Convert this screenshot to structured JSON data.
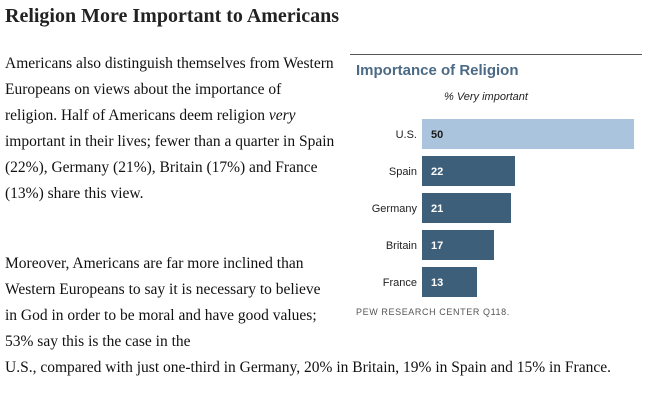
{
  "article": {
    "headline": "Religion More Important to Americans",
    "p1_a": "Americans also distinguish themselves from Western Europeans on views about the importance of religion. Half of Americans deem religion ",
    "p1_em": "very",
    "p1_b": " important in their lives; fewer than a quarter in Spain (22%), Germany (21%), Britain (17%) and France (13%) share this view.",
    "p2_a": "Moreover, Americans are far more inclined than Western Europeans to say it is necessary to believe in God in order to be moral and have good values; 53% say this is the case in the",
    "p2_b": "U.S., compared with just one-third in Germany, 20% in Britain, 19% in Spain and 15% in France."
  },
  "chart_data": {
    "type": "bar",
    "orientation": "horizontal",
    "title": "Importance of Religion",
    "subtitle": "% Very important",
    "categories": [
      "U.S.",
      "Spain",
      "Germany",
      "Britain",
      "France"
    ],
    "values": [
      50,
      22,
      21,
      17,
      13
    ],
    "xlim": [
      0,
      50
    ],
    "source": "PEW RESEARCH CENTER Q118.",
    "colors": {
      "highlight_bar": "#a9c4dc",
      "bar": "#3d5f7a",
      "highlight_value_text": "#1a1a1a",
      "value_text": "#ffffff",
      "title": "#4b6a85"
    }
  }
}
